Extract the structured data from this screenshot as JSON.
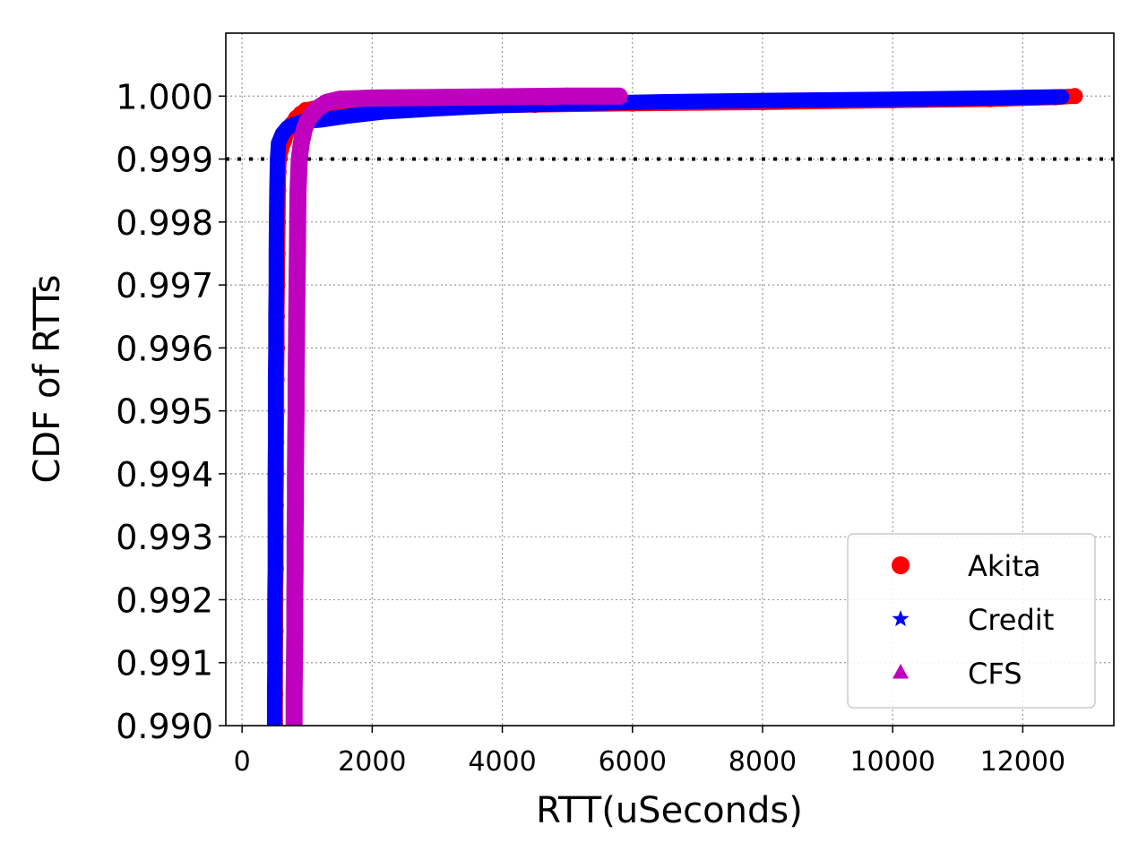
{
  "chart_data": {
    "type": "scatter",
    "title": "",
    "xlabel": "RTT(uSeconds)",
    "ylabel": "CDF of RTTs",
    "xlim": [
      -250,
      13400
    ],
    "ylim": [
      0.99,
      1.001
    ],
    "xticks": [
      0,
      2000,
      4000,
      6000,
      8000,
      10000,
      12000
    ],
    "xtick_labels": [
      "0",
      "2000",
      "4000",
      "6000",
      "8000",
      "10000",
      "12000"
    ],
    "yticks": [
      0.99,
      0.991,
      0.992,
      0.993,
      0.994,
      0.995,
      0.996,
      0.997,
      0.998,
      0.999,
      1.0
    ],
    "ytick_labels": [
      "0.990",
      "0.991",
      "0.992",
      "0.993",
      "0.994",
      "0.995",
      "0.996",
      "0.997",
      "0.998",
      "0.999",
      "1.000"
    ],
    "grid": true,
    "reference_line": {
      "y": 0.999,
      "style": "dotted",
      "color": "#000000"
    },
    "legend_position": "lower-right",
    "series": [
      {
        "name": "Akita",
        "marker": "circle",
        "color": "#ff0000",
        "points": [
          [
            510,
            0.99
          ],
          [
            510,
            0.9905
          ],
          [
            510,
            0.991
          ],
          [
            515,
            0.9915
          ],
          [
            515,
            0.992
          ],
          [
            520,
            0.9925
          ],
          [
            520,
            0.993
          ],
          [
            520,
            0.9935
          ],
          [
            525,
            0.994
          ],
          [
            525,
            0.9945
          ],
          [
            530,
            0.995
          ],
          [
            530,
            0.9955
          ],
          [
            535,
            0.996
          ],
          [
            535,
            0.9965
          ],
          [
            540,
            0.997
          ],
          [
            545,
            0.9975
          ],
          [
            550,
            0.998
          ],
          [
            555,
            0.9985
          ],
          [
            560,
            0.9988
          ],
          [
            570,
            0.999
          ],
          [
            600,
            0.99915
          ],
          [
            650,
            0.9993
          ],
          [
            700,
            0.99945
          ],
          [
            760,
            0.99955
          ],
          [
            830,
            0.99965
          ],
          [
            900,
            0.99972
          ],
          [
            980,
            0.99978
          ],
          [
            1100,
            0.9998
          ],
          [
            1300,
            0.99981
          ],
          [
            2000,
            0.99982
          ],
          [
            3000,
            0.99984
          ],
          [
            4500,
            0.99986
          ],
          [
            6000,
            0.99988
          ],
          [
            8000,
            0.9999
          ],
          [
            10000,
            0.99993
          ],
          [
            11500,
            0.99995
          ],
          [
            12500,
            0.99998
          ],
          [
            12800,
            1.0
          ]
        ]
      },
      {
        "name": "Credit",
        "marker": "star",
        "color": "#0000ff",
        "points": [
          [
            500,
            0.99
          ],
          [
            500,
            0.9905
          ],
          [
            505,
            0.991
          ],
          [
            505,
            0.9915
          ],
          [
            505,
            0.992
          ],
          [
            510,
            0.9925
          ],
          [
            510,
            0.993
          ],
          [
            510,
            0.9935
          ],
          [
            510,
            0.994
          ],
          [
            515,
            0.9945
          ],
          [
            515,
            0.995
          ],
          [
            515,
            0.9955
          ],
          [
            520,
            0.996
          ],
          [
            520,
            0.9965
          ],
          [
            525,
            0.997
          ],
          [
            525,
            0.9975
          ],
          [
            530,
            0.998
          ],
          [
            535,
            0.9985
          ],
          [
            545,
            0.999
          ],
          [
            560,
            0.99925
          ],
          [
            620,
            0.9994
          ],
          [
            700,
            0.9995
          ],
          [
            800,
            0.99955
          ],
          [
            950,
            0.9996
          ],
          [
            1200,
            0.99962
          ],
          [
            1600,
            0.99968
          ],
          [
            2200,
            0.99975
          ],
          [
            3000,
            0.9998
          ],
          [
            4000,
            0.99985
          ],
          [
            5000,
            0.99988
          ],
          [
            6500,
            0.99991
          ],
          [
            8000,
            0.99993
          ],
          [
            10000,
            0.99995
          ],
          [
            11500,
            0.99997
          ],
          [
            12600,
            0.99999
          ]
        ]
      },
      {
        "name": "CFS",
        "marker": "triangle",
        "color": "#bf00bf",
        "points": [
          [
            800,
            0.99
          ],
          [
            800,
            0.9905
          ],
          [
            805,
            0.991
          ],
          [
            810,
            0.9915
          ],
          [
            810,
            0.992
          ],
          [
            815,
            0.9925
          ],
          [
            815,
            0.993
          ],
          [
            820,
            0.9935
          ],
          [
            820,
            0.994
          ],
          [
            825,
            0.9945
          ],
          [
            830,
            0.995
          ],
          [
            830,
            0.9955
          ],
          [
            835,
            0.996
          ],
          [
            840,
            0.9965
          ],
          [
            845,
            0.997
          ],
          [
            850,
            0.9975
          ],
          [
            855,
            0.998
          ],
          [
            860,
            0.9985
          ],
          [
            880,
            0.999
          ],
          [
            910,
            0.99925
          ],
          [
            950,
            0.99945
          ],
          [
            1000,
            0.9996
          ],
          [
            1080,
            0.99972
          ],
          [
            1180,
            0.99982
          ],
          [
            1300,
            0.9999
          ],
          [
            1500,
            0.99995
          ],
          [
            2000,
            0.99997
          ],
          [
            3000,
            0.99998
          ],
          [
            4000,
            0.99999
          ],
          [
            5000,
            1.0
          ],
          [
            5800,
            1.0
          ]
        ]
      }
    ]
  }
}
